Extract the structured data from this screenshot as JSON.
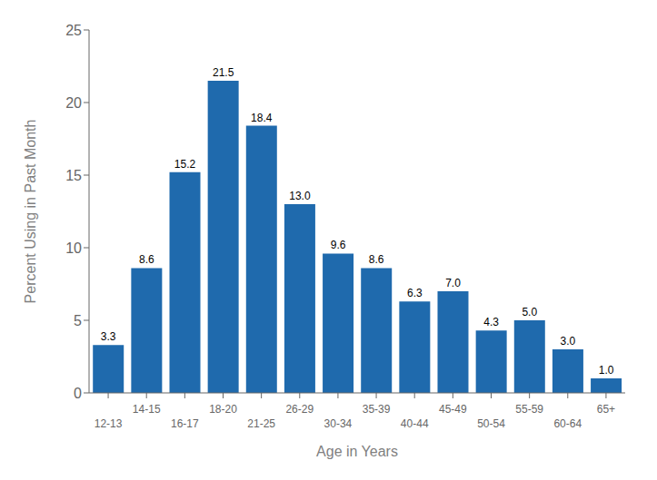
{
  "chart_data": {
    "type": "bar",
    "xlabel": "Age in Years",
    "ylabel": "Percent Using in Past Month",
    "categories": [
      "12-13",
      "14-15",
      "16-17",
      "18-20",
      "21-25",
      "26-29",
      "30-34",
      "35-39",
      "40-44",
      "45-49",
      "50-54",
      "55-59",
      "60-64",
      "65+"
    ],
    "values": [
      3.3,
      8.6,
      15.2,
      21.5,
      18.4,
      13.0,
      9.6,
      8.6,
      6.3,
      7.0,
      4.3,
      5.0,
      3.0,
      1.0
    ],
    "value_labels": [
      "3.3",
      "8.6",
      "15.2",
      "21.5",
      "18.4",
      "13.0",
      "9.6",
      "8.6",
      "6.3",
      "7.0",
      "4.3",
      "5.0",
      "3.0",
      "1.0"
    ],
    "color": "#1F6AAD",
    "ylim": [
      0,
      25
    ],
    "yticks": [
      0,
      5,
      10,
      15,
      20,
      25
    ],
    "grid": false,
    "data_labels": true
  }
}
